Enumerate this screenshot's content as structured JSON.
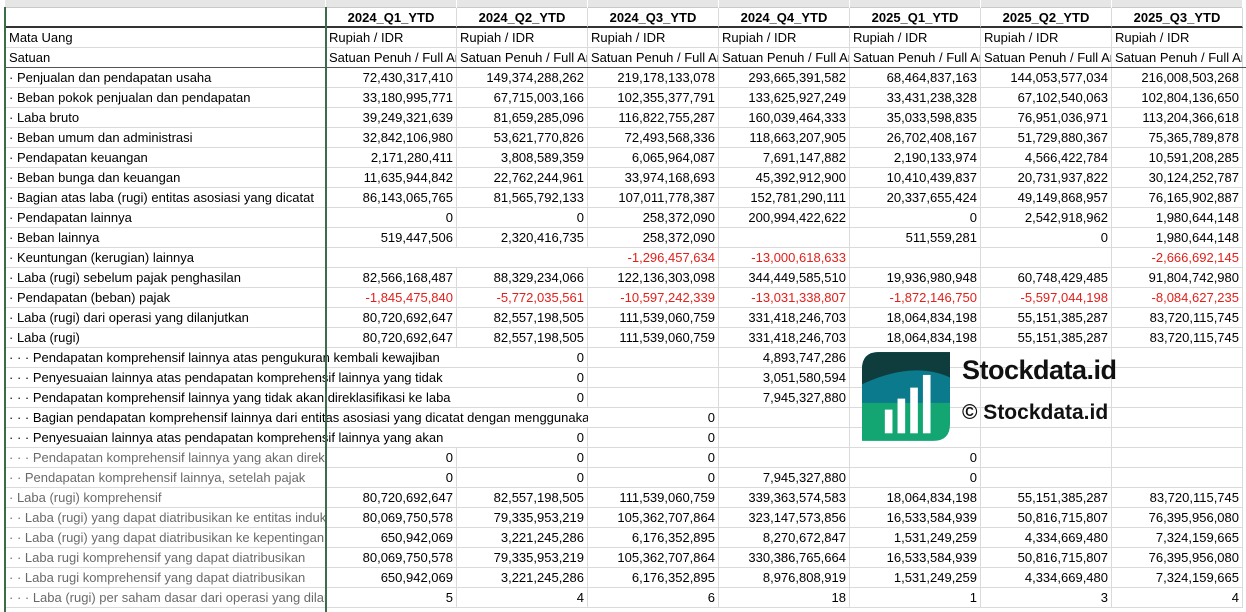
{
  "columns": [
    "2024_Q1_YTD",
    "2024_Q2_YTD",
    "2024_Q3_YTD",
    "2024_Q4_YTD",
    "2025_Q1_YTD",
    "2025_Q2_YTD",
    "2025_Q3_YTD"
  ],
  "meta_rows": [
    {
      "label": "Mata Uang",
      "values": [
        "Rupiah / IDR",
        "Rupiah / IDR",
        "Rupiah / IDR",
        "Rupiah / IDR",
        "Rupiah / IDR",
        "Rupiah / IDR",
        "Rupiah / IDR"
      ]
    },
    {
      "label": "Satuan",
      "values": [
        "Satuan Penuh / Full Amount",
        "Satuan Penuh / Full Amount",
        "Satuan Penuh / Full Amount",
        "Satuan Penuh / Full Amount",
        "Satuan Penuh / Full Amount",
        "Satuan Penuh / Full Amount",
        "Satuan Penuh / Full Amount"
      ]
    }
  ],
  "rows": [
    {
      "label": "· Penjualan dan pendapatan usaha",
      "values": [
        "72,430,317,410",
        "149,374,288,262",
        "219,178,133,078",
        "293,665,391,582",
        "68,464,837,163",
        "144,053,577,034",
        "216,008,503,268"
      ]
    },
    {
      "label": "· Beban pokok penjualan dan pendapatan",
      "values": [
        "33,180,995,771",
        "67,715,003,166",
        "102,355,377,791",
        "133,625,927,249",
        "33,431,238,328",
        "67,102,540,063",
        "102,804,136,650"
      ]
    },
    {
      "label": "· Laba bruto",
      "values": [
        "39,249,321,639",
        "81,659,285,096",
        "116,822,755,287",
        "160,039,464,333",
        "35,033,598,835",
        "76,951,036,971",
        "113,204,366,618"
      ]
    },
    {
      "label": "· Beban umum dan administrasi",
      "values": [
        "32,842,106,980",
        "53,621,770,826",
        "72,493,568,336",
        "118,663,207,905",
        "26,702,408,167",
        "51,729,880,367",
        "75,365,789,878"
      ]
    },
    {
      "label": "· Pendapatan keuangan",
      "values": [
        "2,171,280,411",
        "3,808,589,359",
        "6,065,964,087",
        "7,691,147,882",
        "2,190,133,974",
        "4,566,422,784",
        "10,591,208,285"
      ]
    },
    {
      "label": "· Beban bunga dan keuangan",
      "values": [
        "11,635,944,842",
        "22,762,244,961",
        "33,974,168,693",
        "45,392,912,900",
        "10,410,439,837",
        "20,731,937,822",
        "30,124,252,787"
      ]
    },
    {
      "label": "· Bagian atas laba (rugi) entitas asosiasi yang dicatat",
      "values": [
        "86,143,065,765",
        "81,565,792,133",
        "107,011,778,387",
        "152,781,290,111",
        "20,337,655,424",
        "49,149,868,957",
        "76,165,902,887"
      ]
    },
    {
      "label": "· Pendapatan lainnya",
      "values": [
        "0",
        "0",
        "258,372,090",
        "200,994,422,622",
        "0",
        "2,542,918,962",
        "1,980,644,148"
      ]
    },
    {
      "label": "· Beban lainnya",
      "values": [
        "519,447,506",
        "2,320,416,735",
        "258,372,090",
        "",
        "511,559,281",
        "0",
        "1,980,644,148"
      ]
    },
    {
      "label": "· Keuntungan (kerugian) lainnya",
      "values": [
        "",
        "",
        "-1,296,457,634",
        "-13,000,618,633",
        "",
        "",
        "-2,666,692,145"
      ]
    },
    {
      "label": "· Laba (rugi) sebelum pajak penghasilan",
      "values": [
        "82,566,168,487",
        "88,329,234,066",
        "122,136,303,098",
        "344,449,585,510",
        "19,936,980,948",
        "60,748,429,485",
        "91,804,742,980"
      ]
    },
    {
      "label": "· Pendapatan (beban) pajak",
      "values": [
        "-1,845,475,840",
        "-5,772,035,561",
        "-10,597,242,339",
        "-13,031,338,807",
        "-1,872,146,750",
        "-5,597,044,198",
        "-8,084,627,235"
      ]
    },
    {
      "label": "· Laba (rugi) dari operasi yang dilanjutkan",
      "values": [
        "80,720,692,647",
        "82,557,198,505",
        "111,539,060,759",
        "331,418,246,703",
        "18,064,834,198",
        "55,151,385,287",
        "83,720,115,745"
      ]
    },
    {
      "label": "· Laba (rugi)",
      "values": [
        "80,720,692,647",
        "82,557,198,505",
        "111,539,060,759",
        "331,418,246,703",
        "18,064,834,198",
        "55,151,385,287",
        "83,720,115,745"
      ]
    },
    {
      "label": "· · · Pendapatan komprehensif lainnya atas pengukuran kembali kewajiban",
      "values": [
        "",
        "0",
        "",
        "4,893,747,286",
        "",
        "",
        ""
      ]
    },
    {
      "label": "· · · Penyesuaian lainnya atas pendapatan komprehensif lainnya yang tidak",
      "values": [
        "",
        "0",
        "",
        "3,051,580,594",
        "",
        "",
        ""
      ]
    },
    {
      "label": "· · · Pendapatan komprehensif lainnya yang tidak akan direklasifikasi ke laba",
      "values": [
        "",
        "0",
        "",
        "7,945,327,880",
        "",
        "",
        ""
      ]
    },
    {
      "label": "· · · Bagian pendapatan komprehensif lainnya dari entitas asosiasi yang dicatat dengan menggunakan",
      "values": [
        "",
        "",
        "0",
        "",
        "",
        "",
        ""
      ]
    },
    {
      "label": "· · · Penyesuaian lainnya atas pendapatan komprehensif lainnya yang akan",
      "values": [
        "",
        "0",
        "0",
        "",
        "",
        "",
        ""
      ]
    },
    {
      "label": "· · · Pendapatan komprehensif lainnya yang akan direklasifikasi",
      "values": [
        "0",
        "0",
        "0",
        "",
        "0",
        "",
        ""
      ],
      "gray": true
    },
    {
      "label": "· · Pendapatan komprehensif lainnya, setelah pajak",
      "values": [
        "0",
        "0",
        "0",
        "7,945,327,880",
        "0",
        "",
        ""
      ],
      "gray": true
    },
    {
      "label": "· Laba (rugi) komprehensif",
      "values": [
        "80,720,692,647",
        "82,557,198,505",
        "111,539,060,759",
        "339,363,574,583",
        "18,064,834,198",
        "55,151,385,287",
        "83,720,115,745"
      ],
      "gray": true
    },
    {
      "label": "· · Laba (rugi) yang dapat diatribusikan ke entitas induk",
      "values": [
        "80,069,750,578",
        "79,335,953,219",
        "105,362,707,864",
        "323,147,573,856",
        "16,533,584,939",
        "50,816,715,807",
        "76,395,956,080"
      ],
      "gray": true
    },
    {
      "label": "· · Laba (rugi) yang dapat diatribusikan ke kepentingan",
      "values": [
        "650,942,069",
        "3,221,245,286",
        "6,176,352,895",
        "8,270,672,847",
        "1,531,249,259",
        "4,334,669,480",
        "7,324,159,665"
      ],
      "gray": true
    },
    {
      "label": "· · Laba rugi komprehensif yang dapat diatribusikan",
      "values": [
        "80,069,750,578",
        "79,335,953,219",
        "105,362,707,864",
        "330,386,765,664",
        "16,533,584,939",
        "50,816,715,807",
        "76,395,956,080"
      ],
      "gray": true
    },
    {
      "label": "· · Laba rugi komprehensif yang dapat diatribusikan",
      "values": [
        "650,942,069",
        "3,221,245,286",
        "6,176,352,895",
        "8,976,808,919",
        "1,531,249,259",
        "4,334,669,480",
        "7,324,159,665"
      ],
      "gray": true
    },
    {
      "label": "· · · Laba (rugi) per saham dasar dari operasi yang dilanjutkan",
      "values": [
        "5",
        "4",
        "6",
        "18",
        "1",
        "3",
        "4"
      ],
      "gray": true
    }
  ],
  "watermark": {
    "brand": "Stockdata.id",
    "copyright": "© Stockdata.id"
  },
  "colors": {
    "negative": "#e0201b",
    "grid": "#dadada",
    "frame": "#3b6e48",
    "logo_dark": "#0f3d3e",
    "logo_mid": "#0a7a8c",
    "logo_light": "#13a672"
  }
}
